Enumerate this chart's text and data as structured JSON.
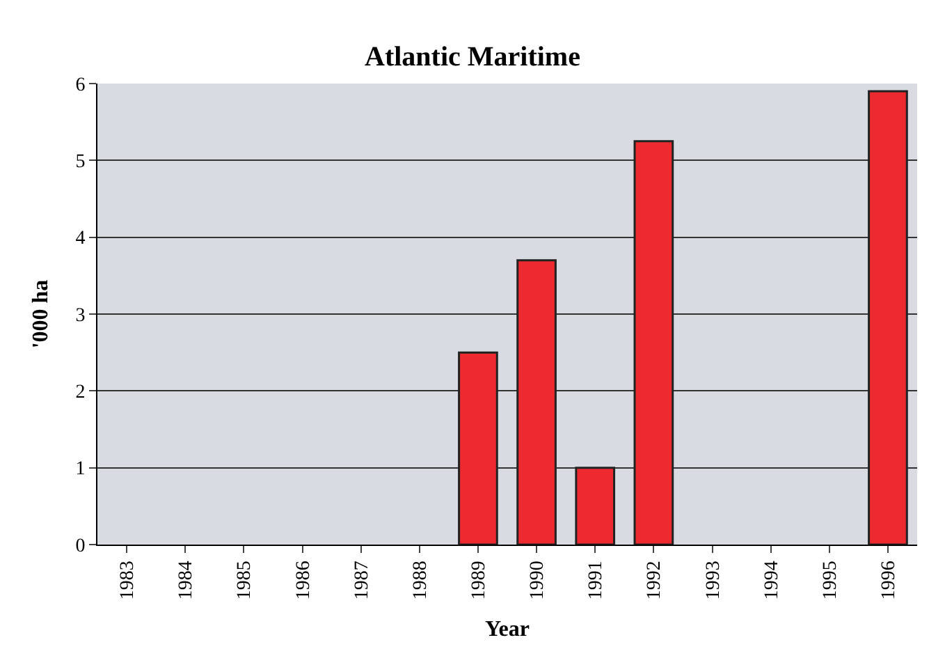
{
  "chart_data": {
    "type": "bar",
    "title": "Atlantic Maritime",
    "xlabel": "Year",
    "ylabel": "'000 ha",
    "categories": [
      "1983",
      "1984",
      "1985",
      "1986",
      "1987",
      "1988",
      "1989",
      "1990",
      "1991",
      "1992",
      "1993",
      "1994",
      "1995",
      "1996"
    ],
    "values": [
      null,
      null,
      null,
      null,
      null,
      null,
      2.5,
      3.7,
      1.0,
      5.25,
      null,
      null,
      null,
      5.9
    ],
    "color": "#ec2a2f",
    "ylim": [
      0,
      6
    ],
    "yticks": [
      0,
      1,
      2,
      3,
      4,
      5,
      6
    ],
    "grid": "y"
  }
}
